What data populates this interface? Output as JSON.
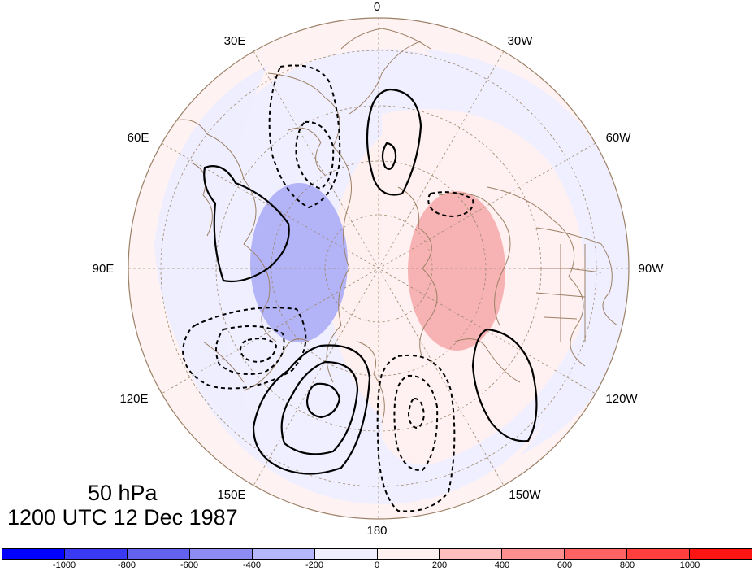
{
  "title": {
    "level": "50 hPa",
    "datetime": "1200 UTC 12 Dec 1987"
  },
  "projection": "north-polar-stereographic",
  "longitude_labels": [
    "0",
    "30W",
    "60W",
    "90W",
    "120W",
    "150W",
    "180",
    "150E",
    "120E",
    "90E",
    "60E",
    "30E"
  ],
  "colorbar": {
    "colors": [
      "#0000ff",
      "#3a3af5",
      "#6262ee",
      "#8c8cf2",
      "#b6b6fa",
      "#eeeeff",
      "#fff0f0",
      "#ffbdbd",
      "#ff8e8e",
      "#ff6262",
      "#ff3e3e",
      "#ff1414"
    ],
    "labels": [
      "-1000",
      "-800",
      "-600",
      "-400",
      "-200",
      "0",
      "200",
      "400",
      "600",
      "800",
      "1000"
    ]
  },
  "legend_colors": {
    "negative_anomaly": "#b3b3f7",
    "positive_anomaly": "#f7b3b3",
    "coastline": "#9c8066",
    "graticule": "#a08a70",
    "contour": "#000000"
  }
}
